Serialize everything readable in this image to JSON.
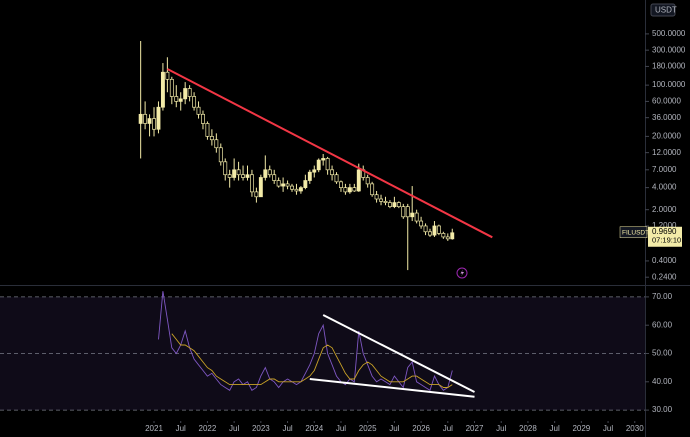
{
  "chart_data": [
    {
      "type": "candlestick",
      "currency": "USDT",
      "log_scale": true,
      "xlim": [
        -34.6,
        110.3
      ],
      "ylim": [
        0.2,
        1450
      ],
      "yticks": [
        {
          "value": 500,
          "label": "500.0000"
        },
        {
          "value": 300,
          "label": "300.0000"
        },
        {
          "value": 180,
          "label": "180.0000"
        },
        {
          "value": 100,
          "label": "100.0000"
        },
        {
          "value": 60,
          "label": "60.0000"
        },
        {
          "value": 36,
          "label": "36.0000"
        },
        {
          "value": 20,
          "label": "20.0000"
        },
        {
          "value": 12,
          "label": "12.0000"
        },
        {
          "value": 7,
          "label": "7.0000"
        },
        {
          "value": 4,
          "label": "4.0000"
        },
        {
          "value": 2,
          "label": "2.0000"
        },
        {
          "value": 1.2,
          "label": "1.2000"
        },
        {
          "value": 0.4,
          "label": "0.4000"
        },
        {
          "value": 0.24,
          "label": "0.2400"
        }
      ],
      "color": "#f3eba8",
      "x": [
        -3,
        -2,
        -1,
        0,
        1,
        2,
        3,
        4,
        5,
        6,
        7,
        8,
        9,
        10,
        11,
        12,
        13,
        14,
        15,
        16,
        17,
        18,
        19,
        20,
        21,
        22,
        23,
        24,
        25,
        26,
        27,
        28,
        29,
        30,
        31,
        32,
        33,
        34,
        35,
        36,
        37,
        38,
        39,
        40,
        41,
        42,
        43,
        44,
        45,
        46,
        47,
        48,
        49,
        50,
        51,
        52,
        53,
        54,
        55,
        56,
        57,
        58,
        59,
        60,
        61,
        62,
        63,
        64,
        65,
        66,
        67
      ],
      "open": [
        30,
        40,
        30,
        35,
        25,
        50,
        150,
        120,
        70,
        60,
        65,
        90,
        70,
        50,
        40,
        30,
        20,
        18,
        14,
        9,
        6,
        5.5,
        7,
        6,
        5.5,
        6,
        3.5,
        3,
        5.5,
        7,
        6,
        5,
        4.2,
        4.5,
        4.2,
        3.8,
        3.6,
        4,
        5,
        6.5,
        7,
        9.5,
        10,
        7,
        6,
        4.8,
        4,
        3.5,
        4,
        3.6,
        7,
        5.5,
        4.5,
        3.2,
        2.8,
        2.6,
        2.5,
        2.2,
        2.5,
        2.2,
        2.2,
        1.6,
        1.8,
        1.4,
        1.2,
        1.0,
        0.9,
        1.2,
        0.95,
        0.85,
        0.8
      ],
      "high": [
        400,
        60,
        40,
        50,
        60,
        200,
        240,
        130,
        100,
        80,
        110,
        100,
        80,
        60,
        45,
        32,
        25,
        22,
        16,
        10,
        7,
        10,
        9,
        8,
        8,
        7,
        4,
        6,
        11,
        8,
        7,
        5.5,
        5.5,
        5,
        4.5,
        4.5,
        4.2,
        6,
        7,
        8,
        10,
        11.5,
        10.5,
        8,
        6.5,
        5,
        4.5,
        4.5,
        4.5,
        8.5,
        8,
        6,
        4.8,
        3.6,
        3.2,
        3,
        2.7,
        3,
        2.6,
        2.4,
        2.4,
        4.2,
        2,
        1.6,
        1.3,
        1.1,
        1.4,
        1.25,
        1.0,
        0.95,
        1.1
      ],
      "low": [
        10,
        25,
        20,
        20,
        22,
        45,
        80,
        55,
        50,
        45,
        55,
        60,
        45,
        35,
        25,
        18,
        15,
        12,
        8,
        5,
        4,
        5,
        5,
        5,
        5,
        3,
        2.5,
        3,
        5,
        5.5,
        4.5,
        4,
        3.5,
        3.8,
        3.5,
        3.2,
        3.3,
        3.8,
        4.5,
        5.5,
        6.5,
        8,
        6,
        5,
        4.5,
        3.5,
        3.2,
        3.3,
        3.5,
        3.5,
        5,
        4,
        3,
        2.5,
        2.3,
        2.3,
        2.1,
        2.1,
        2.1,
        1.5,
        0.3,
        1.4,
        1.3,
        1.1,
        0.9,
        0.85,
        0.85,
        0.9,
        0.8,
        0.75,
        0.78
      ],
      "close": [
        40,
        30,
        35,
        25,
        50,
        150,
        120,
        70,
        60,
        65,
        90,
        70,
        50,
        40,
        30,
        20,
        18,
        14,
        9,
        6,
        5.5,
        7,
        6,
        5.5,
        6,
        3.5,
        3,
        5.5,
        7,
        6,
        5,
        4.2,
        4.5,
        4.2,
        3.8,
        3.6,
        4,
        5,
        6.5,
        7,
        9.5,
        10,
        7,
        6,
        4.8,
        4,
        3.5,
        4,
        3.6,
        7,
        5.5,
        4.5,
        3.2,
        2.8,
        2.6,
        2.5,
        2.2,
        2.5,
        2.2,
        1.6,
        1.6,
        1.8,
        1.4,
        1.2,
        1.0,
        0.9,
        1.2,
        0.95,
        0.85,
        0.8,
        0.969
      ],
      "trendline": {
        "color": "#f23645",
        "x": [
          3,
          76
        ],
        "values": [
          166,
          0.84
        ]
      },
      "last": {
        "symbol": "FILUSDT",
        "value": 0.969,
        "value_label": "0.9690",
        "countdown": "07:19:10"
      }
    },
    {
      "type": "line",
      "ylim": [
        26.5,
        73.5
      ],
      "yticks": [
        {
          "value": 30,
          "label": "30.00"
        },
        {
          "value": 40,
          "label": "40.00"
        },
        {
          "value": 50,
          "label": "50.00"
        },
        {
          "value": 60,
          "label": "60.00"
        },
        {
          "value": 70,
          "label": "70.00"
        }
      ],
      "dashed_levels": [
        30,
        50,
        70
      ],
      "xticks": [
        {
          "value": 0,
          "label": "2021"
        },
        {
          "value": 6,
          "label": "Jul"
        },
        {
          "value": 12,
          "label": "2022"
        },
        {
          "value": 18,
          "label": "Jul"
        },
        {
          "value": 24,
          "label": "2023"
        },
        {
          "value": 30,
          "label": "Jul"
        },
        {
          "value": 36,
          "label": "2024"
        },
        {
          "value": 42,
          "label": "Jul"
        },
        {
          "value": 48,
          "label": "2025"
        },
        {
          "value": 54,
          "label": "Jul"
        },
        {
          "value": 60,
          "label": "2026"
        },
        {
          "value": 66,
          "label": "Jul"
        },
        {
          "value": 72,
          "label": "2027"
        },
        {
          "value": 78,
          "label": "Jul"
        },
        {
          "value": 84,
          "label": "2028"
        },
        {
          "value": 90,
          "label": "Jul"
        },
        {
          "value": 96,
          "label": "2029"
        },
        {
          "value": 102,
          "label": "Jul"
        },
        {
          "value": 108,
          "label": "2030"
        }
      ],
      "series": [
        {
          "color": "#7e57c2",
          "values": [
            null,
            null,
            null,
            null,
            55,
            72,
            62,
            52,
            50,
            53,
            58,
            52,
            48,
            46,
            44,
            42,
            43,
            41,
            39,
            38,
            37,
            40,
            41,
            39,
            40,
            37,
            38,
            42,
            45,
            41,
            40,
            38,
            40,
            41,
            40,
            39,
            40,
            43,
            46,
            50,
            57,
            60,
            50,
            46,
            42,
            40,
            39,
            41,
            40,
            58,
            50,
            46,
            42,
            40,
            41,
            40,
            39,
            42,
            40,
            38,
            45,
            47,
            40,
            39,
            38,
            37,
            42,
            39,
            37,
            38,
            44
          ]
        },
        {
          "color": "#c9a227",
          "values": [
            null,
            null,
            null,
            null,
            null,
            null,
            null,
            57,
            55,
            53,
            53,
            52,
            51,
            49,
            47,
            45,
            44,
            42,
            41,
            40,
            39,
            39,
            39,
            39,
            39,
            39,
            39,
            39,
            40,
            41,
            41,
            40,
            40,
            40,
            40,
            40,
            40,
            41,
            42,
            44,
            48,
            52,
            53,
            52,
            49,
            46,
            43,
            41,
            41,
            44,
            46,
            47,
            46,
            44,
            42,
            41,
            40,
            40,
            40,
            40,
            41,
            42,
            42,
            41,
            40,
            39,
            39,
            39,
            38,
            38,
            39
          ]
        }
      ],
      "trendlines": [
        {
          "color": "#ffffff",
          "x": [
            38,
            72
          ],
          "values": [
            63.6,
            36.4
          ]
        },
        {
          "color": "#ffffff",
          "x": [
            35,
            72
          ],
          "values": [
            41.0,
            34.7
          ]
        }
      ]
    }
  ]
}
